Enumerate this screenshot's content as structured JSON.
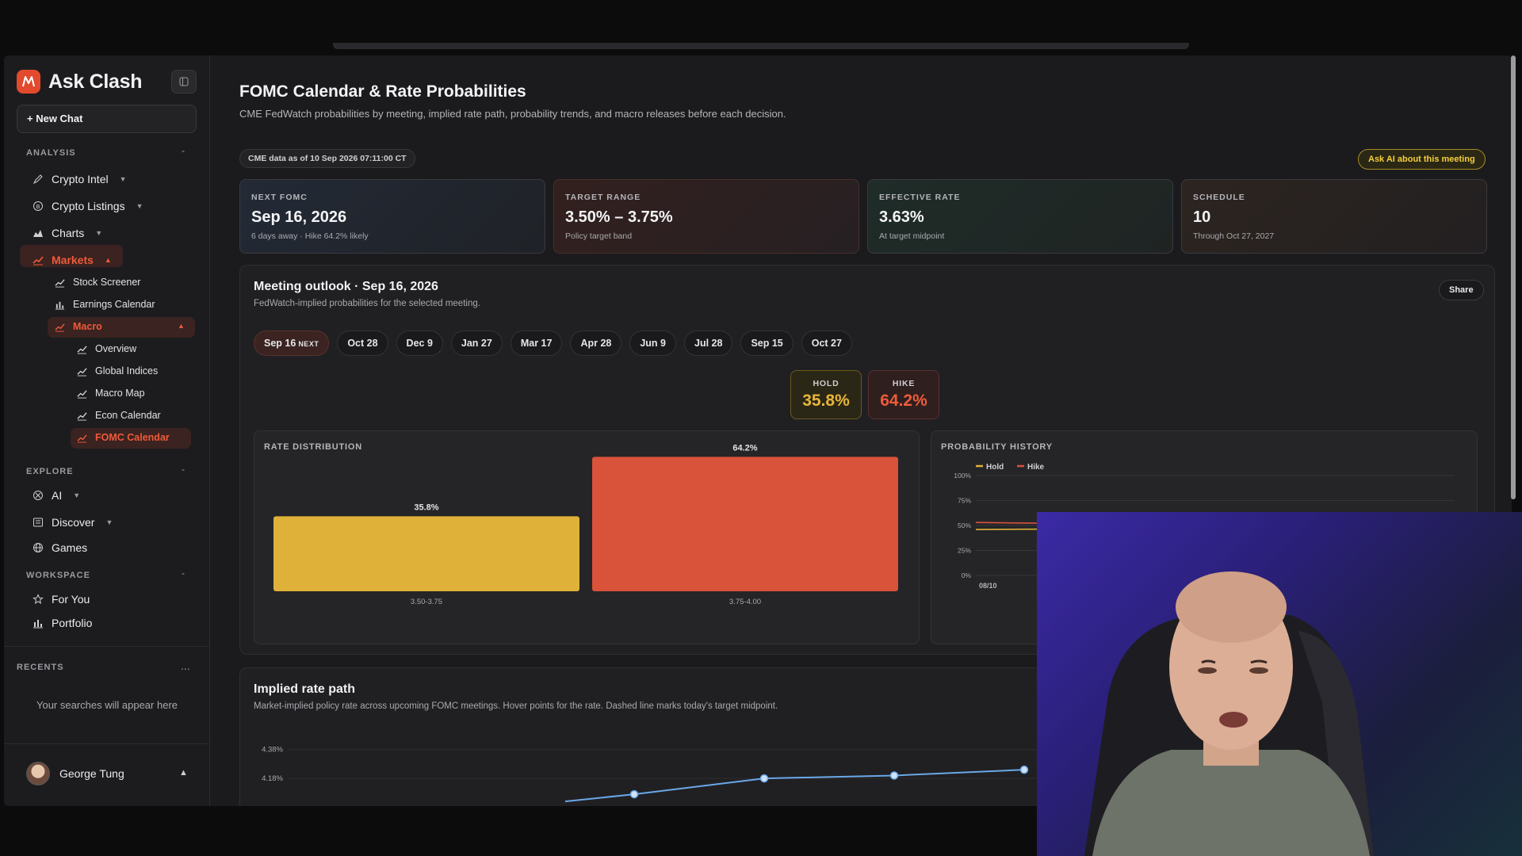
{
  "sidebar": {
    "brand": "Ask Clash",
    "new_chat": "+ New Chat",
    "sections": {
      "analysis": "ANALYSIS",
      "explore": "EXPLORE",
      "workspace": "WORKSPACE",
      "recents": "RECENTS"
    },
    "analysis_items": [
      "Crypto Intel",
      "Crypto Listings",
      "Charts",
      "Markets"
    ],
    "markets_sub": [
      "Stock Screener",
      "Earnings Calendar",
      "Macro"
    ],
    "macro_sub": [
      "Overview",
      "Global Indices",
      "Macro Map",
      "Econ Calendar",
      "FOMC Calendar"
    ],
    "explore_items": [
      "AI",
      "Discover",
      "Games"
    ],
    "workspace_items": [
      "For You",
      "Portfolio"
    ],
    "recents_more": "...",
    "recents_empty": "Your searches will appear here",
    "user_name": "George Tung"
  },
  "header": {
    "title": "FOMC Calendar & Rate Probabilities",
    "subtitle": "CME FedWatch probabilities by meeting, implied rate path, probability trends, and macro releases before each decision.",
    "as_of": "CME data as of 10 Sep 2026 07:11:00 CT",
    "ask_ai": "Ask AI about this meeting"
  },
  "cards": [
    {
      "label": "NEXT FOMC",
      "value": "Sep 16, 2026",
      "note": "6 days away · Hike 64.2% likely"
    },
    {
      "label": "TARGET RANGE",
      "value": "3.50% – 3.75%",
      "note": "Policy target band"
    },
    {
      "label": "EFFECTIVE RATE",
      "value": "3.63%",
      "note": "At target midpoint"
    },
    {
      "label": "SCHEDULE",
      "value": "10",
      "note": "Through Oct 27, 2027"
    }
  ],
  "outlook": {
    "title": "Meeting outlook · Sep 16, 2026",
    "subtitle": "FedWatch-implied probabilities for the selected meeting.",
    "share": "Share",
    "meetings": [
      "Sep 16",
      "Oct 28",
      "Dec 9",
      "Jan 27",
      "Mar 17",
      "Apr 28",
      "Jun 9",
      "Jul 28",
      "Sep 15",
      "Oct 27"
    ],
    "next_tag": "NEXT",
    "hold_label": "HOLD",
    "hold_value": "35.8%",
    "hike_label": "HIKE",
    "hike_value": "64.2%",
    "dist_title": "RATE DISTRIBUTION",
    "hist_title": "PROBABILITY HISTORY"
  },
  "ratepath": {
    "title": "Implied rate path",
    "subtitle": "Market-implied policy rate across upcoming FOMC meetings. Hover points for the rate. Dashed line marks today's target midpoint."
  },
  "colors": {
    "accent": "#ef5a3a",
    "hold": "#e0b138",
    "hike": "#d9523a",
    "line": "#6aa8e8"
  },
  "chart_data": [
    {
      "type": "bar",
      "title": "RATE DISTRIBUTION",
      "categories": [
        "3.50-3.75",
        "3.75-4.00"
      ],
      "values": [
        35.8,
        64.2
      ],
      "value_labels": [
        "35.8%",
        "64.2%"
      ],
      "ylim": [
        0,
        70
      ]
    },
    {
      "type": "line",
      "title": "PROBABILITY HISTORY",
      "x": [
        "08/10"
      ],
      "yticks": [
        "100%",
        "75%",
        "50%",
        "25%",
        "0%"
      ],
      "ylim": [
        0,
        100
      ],
      "series": [
        {
          "name": "Hold",
          "values": [
            46
          ]
        },
        {
          "name": "Hike",
          "values": [
            53
          ]
        }
      ],
      "legend": "top-left"
    },
    {
      "type": "line",
      "title": "Implied rate path",
      "yticks": [
        "4.38%",
        "4.18%"
      ],
      "ylim": [
        3.9,
        4.45
      ],
      "series": [
        {
          "values": [
            4.07,
            4.18,
            4.2,
            4.24
          ]
        }
      ]
    }
  ]
}
